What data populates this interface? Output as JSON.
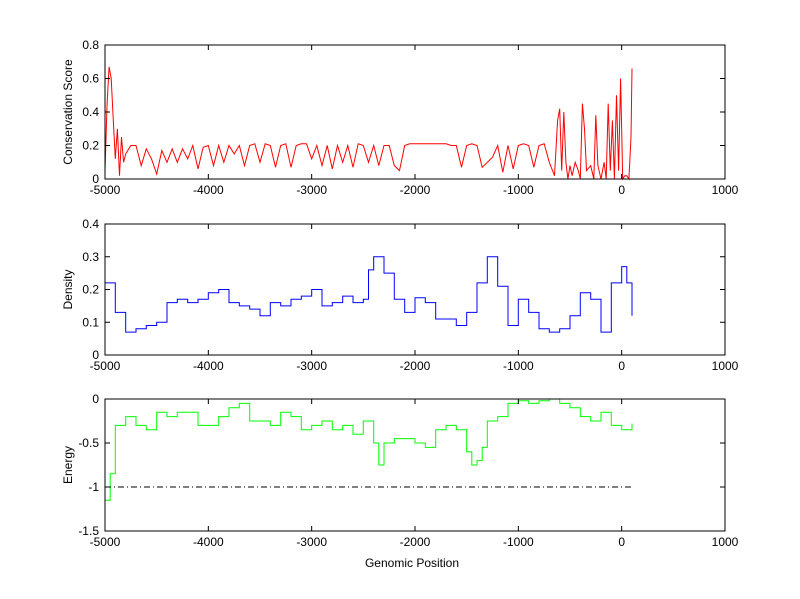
{
  "chart_data": [
    {
      "type": "line",
      "ylabel": "Conservation Score",
      "xlabel": "",
      "xlim": [
        -5000,
        1000
      ],
      "ylim": [
        0,
        0.8
      ],
      "xticks": [
        "-5000",
        "-4000",
        "-3000",
        "-2000",
        "-1000",
        "0",
        "1000"
      ],
      "yticks": [
        "0",
        "0.2",
        "0.4",
        "0.6",
        "0.8"
      ],
      "color": "#ff0000",
      "series": [
        {
          "name": "conservation",
          "x": [
            -5000,
            -4980,
            -4960,
            -4940,
            -4920,
            -4900,
            -4880,
            -4860,
            -4840,
            -4820,
            -4800,
            -4750,
            -4700,
            -4650,
            -4600,
            -4550,
            -4500,
            -4450,
            -4400,
            -4350,
            -4300,
            -4250,
            -4200,
            -4150,
            -4100,
            -4050,
            -4000,
            -3950,
            -3900,
            -3850,
            -3800,
            -3750,
            -3700,
            -3650,
            -3600,
            -3550,
            -3500,
            -3450,
            -3400,
            -3350,
            -3300,
            -3250,
            -3200,
            -3150,
            -3100,
            -3050,
            -3000,
            -2950,
            -2900,
            -2850,
            -2800,
            -2750,
            -2700,
            -2650,
            -2600,
            -2550,
            -2500,
            -2450,
            -2400,
            -2350,
            -2300,
            -2250,
            -2200,
            -2150,
            -2100,
            -2050,
            -2000,
            -1950,
            -1900,
            -1850,
            -1800,
            -1750,
            -1700,
            -1650,
            -1600,
            -1550,
            -1500,
            -1450,
            -1400,
            -1350,
            -1300,
            -1250,
            -1200,
            -1150,
            -1100,
            -1050,
            -1000,
            -950,
            -900,
            -850,
            -800,
            -750,
            -700,
            -650,
            -620,
            -600,
            -580,
            -560,
            -540,
            -520,
            -500,
            -480,
            -450,
            -420,
            -400,
            -380,
            -360,
            -340,
            -300,
            -270,
            -250,
            -230,
            -200,
            -170,
            -150,
            -130,
            -110,
            -90,
            -70,
            -50,
            -30,
            -10,
            10,
            30,
            50,
            70,
            90,
            100
          ],
          "y": [
            0.05,
            0.45,
            0.67,
            0.6,
            0.35,
            0.12,
            0.3,
            0.02,
            0.25,
            0.1,
            0.15,
            0.2,
            0.2,
            0.08,
            0.18,
            0.12,
            0.03,
            0.17,
            0.1,
            0.18,
            0.1,
            0.18,
            0.12,
            0.2,
            0.06,
            0.19,
            0.2,
            0.08,
            0.2,
            0.1,
            0.2,
            0.15,
            0.2,
            0.08,
            0.2,
            0.21,
            0.1,
            0.21,
            0.2,
            0.07,
            0.2,
            0.21,
            0.07,
            0.2,
            0.21,
            0.21,
            0.12,
            0.2,
            0.08,
            0.2,
            0.06,
            0.2,
            0.1,
            0.2,
            0.07,
            0.21,
            0.2,
            0.1,
            0.2,
            0.08,
            0.2,
            0.2,
            0.08,
            0.05,
            0.2,
            0.21,
            0.21,
            0.21,
            0.21,
            0.21,
            0.21,
            0.21,
            0.21,
            0.2,
            0.2,
            0.07,
            0.2,
            0.21,
            0.2,
            0.07,
            0.1,
            0.13,
            0.2,
            0.04,
            0.2,
            0.06,
            0.2,
            0.21,
            0.2,
            0.07,
            0.2,
            0.21,
            0.1,
            0.02,
            0.35,
            0.42,
            0.05,
            0.4,
            0.1,
            0.0,
            0.08,
            0.02,
            0.1,
            0.05,
            0.0,
            0.45,
            0.3,
            0.05,
            0.08,
            0.0,
            0.38,
            0.08,
            0.0,
            0.1,
            0.0,
            0.45,
            0.05,
            0.35,
            0.0,
            0.5,
            0.05,
            0.6,
            0.0,
            0.02,
            0.02,
            0.0,
            0.25,
            0.66
          ]
        }
      ]
    },
    {
      "type": "line",
      "ylabel": "Density",
      "xlabel": "",
      "xlim": [
        -5000,
        1000
      ],
      "ylim": [
        0,
        0.4
      ],
      "xticks": [
        "-5000",
        "-4000",
        "-3000",
        "-2000",
        "-1000",
        "0",
        "1000"
      ],
      "yticks": [
        "0",
        "0.1",
        "0.2",
        "0.3",
        "0.4"
      ],
      "color": "#0000ff",
      "series": [
        {
          "name": "density",
          "x": [
            -5000,
            -4900,
            -4800,
            -4700,
            -4600,
            -4500,
            -4400,
            -4300,
            -4200,
            -4100,
            -4000,
            -3900,
            -3800,
            -3700,
            -3600,
            -3500,
            -3400,
            -3300,
            -3200,
            -3100,
            -3000,
            -2900,
            -2800,
            -2700,
            -2600,
            -2500,
            -2450,
            -2400,
            -2300,
            -2200,
            -2100,
            -2000,
            -1900,
            -1800,
            -1700,
            -1600,
            -1500,
            -1400,
            -1300,
            -1200,
            -1100,
            -1000,
            -900,
            -800,
            -700,
            -600,
            -500,
            -400,
            -300,
            -200,
            -100,
            0,
            50,
            100
          ],
          "y": [
            0.22,
            0.13,
            0.07,
            0.08,
            0.09,
            0.1,
            0.16,
            0.17,
            0.16,
            0.17,
            0.19,
            0.2,
            0.16,
            0.15,
            0.14,
            0.12,
            0.16,
            0.15,
            0.17,
            0.18,
            0.2,
            0.15,
            0.16,
            0.18,
            0.16,
            0.17,
            0.26,
            0.3,
            0.25,
            0.17,
            0.13,
            0.175,
            0.16,
            0.11,
            0.11,
            0.09,
            0.13,
            0.22,
            0.3,
            0.21,
            0.09,
            0.17,
            0.13,
            0.08,
            0.07,
            0.08,
            0.12,
            0.19,
            0.17,
            0.07,
            0.22,
            0.27,
            0.22,
            0.12
          ]
        }
      ]
    },
    {
      "type": "line",
      "ylabel": "Energy",
      "xlabel": "Genomic Position",
      "xlim": [
        -5000,
        1000
      ],
      "ylim": [
        -1.5,
        0
      ],
      "xticks": [
        "-5000",
        "-4000",
        "-3000",
        "-2000",
        "-1000",
        "0",
        "1000"
      ],
      "yticks": [
        "-1.5",
        "-1",
        "-0.5",
        "0"
      ],
      "color": "#00ff00",
      "threshold": {
        "y": -1,
        "x": [
          -5000,
          100
        ],
        "style": "dash-dot",
        "color": "#000000"
      },
      "series": [
        {
          "name": "energy",
          "x": [
            -5000,
            -4950,
            -4900,
            -4800,
            -4700,
            -4600,
            -4500,
            -4400,
            -4300,
            -4200,
            -4100,
            -4000,
            -3900,
            -3800,
            -3700,
            -3600,
            -3500,
            -3400,
            -3300,
            -3200,
            -3100,
            -3000,
            -2900,
            -2800,
            -2700,
            -2600,
            -2500,
            -2400,
            -2350,
            -2300,
            -2200,
            -2100,
            -2000,
            -1900,
            -1800,
            -1700,
            -1600,
            -1500,
            -1450,
            -1400,
            -1350,
            -1300,
            -1200,
            -1100,
            -1000,
            -900,
            -800,
            -700,
            -600,
            -500,
            -400,
            -300,
            -200,
            -100,
            0,
            100
          ],
          "y": [
            -1.15,
            -0.85,
            -0.3,
            -0.2,
            -0.3,
            -0.35,
            -0.15,
            -0.2,
            -0.15,
            -0.15,
            -0.3,
            -0.3,
            -0.2,
            -0.1,
            -0.05,
            -0.25,
            -0.25,
            -0.3,
            -0.15,
            -0.2,
            -0.35,
            -0.3,
            -0.25,
            -0.35,
            -0.3,
            -0.4,
            -0.25,
            -0.5,
            -0.75,
            -0.5,
            -0.45,
            -0.45,
            -0.5,
            -0.55,
            -0.35,
            -0.3,
            -0.35,
            -0.6,
            -0.75,
            -0.7,
            -0.55,
            -0.25,
            -0.2,
            -0.05,
            -0.02,
            -0.05,
            -0.02,
            0,
            -0.05,
            -0.1,
            -0.2,
            -0.25,
            -0.15,
            -0.3,
            -0.35,
            -0.28
          ]
        }
      ]
    }
  ]
}
